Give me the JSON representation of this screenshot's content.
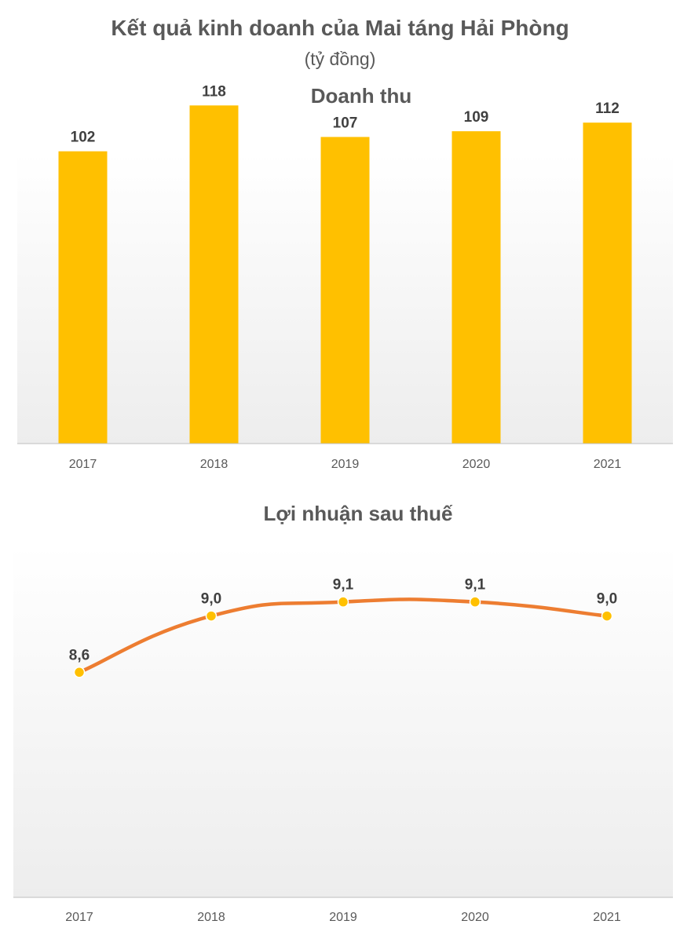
{
  "header": {
    "title": "Kết quả kinh doanh của Mai táng Hải Phòng",
    "unit": "(tỷ đồng)"
  },
  "colors": {
    "bar": "#FFC000",
    "line": "#ED7D31",
    "marker": "#FFC000",
    "axis": "#BFBFBF",
    "text": "#595959"
  },
  "chart_data": [
    {
      "type": "bar",
      "title": "Doanh thu",
      "categories": [
        "2017",
        "2018",
        "2019",
        "2020",
        "2021"
      ],
      "values": [
        102,
        118,
        107,
        109,
        112
      ],
      "labels": [
        "102",
        "118",
        "107",
        "109",
        "112"
      ],
      "ylim": [
        0,
        120
      ],
      "grid": false,
      "legend": "none"
    },
    {
      "type": "line",
      "title": "Lợi nhuận sau thuế",
      "categories": [
        "2017",
        "2018",
        "2019",
        "2020",
        "2021"
      ],
      "values": [
        8.6,
        9.0,
        9.1,
        9.1,
        9.0
      ],
      "labels": [
        "8,6",
        "9,0",
        "9,1",
        "9,1",
        "9,0"
      ],
      "ylim": [
        7.0,
        9.5
      ],
      "smooth": true,
      "grid": false,
      "legend": "none"
    }
  ]
}
